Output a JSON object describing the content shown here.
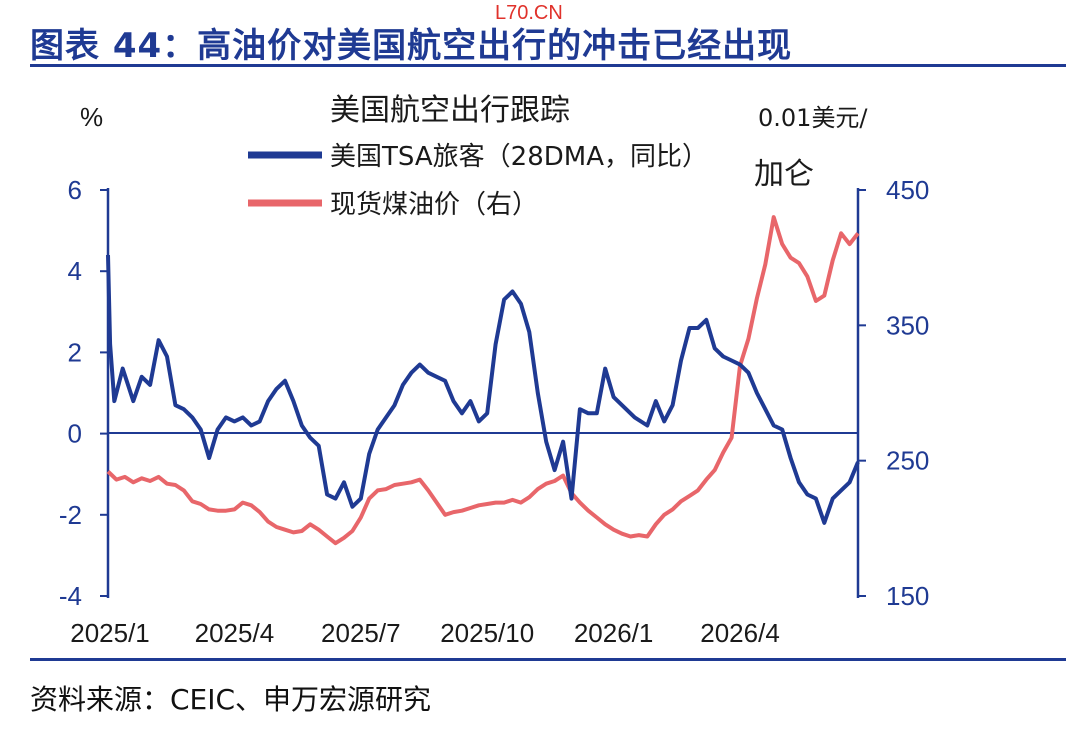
{
  "header": {
    "watermark": "L70.CN",
    "title": "图表 44：高油价对美国航空出行的冲击已经出现"
  },
  "footer": {
    "source": "资料来源：CEIC、申万宏源研究"
  },
  "chart_data": {
    "type": "line",
    "title": "美国航空出行跟踪",
    "left_axis": {
      "unit": "%",
      "min": -4,
      "max": 6,
      "ticks": [
        "6",
        "4",
        "2",
        "0",
        "-2",
        "-4"
      ]
    },
    "right_axis": {
      "unit_line1": "0.01美元/",
      "unit_line2": "加仑",
      "min": 150,
      "max": 450,
      "ticks": [
        "450",
        "350",
        "250",
        "150"
      ]
    },
    "x_ticks": [
      "2025/1",
      "2025/4",
      "2025/7",
      "2025/10",
      "2026/1",
      "2026/4"
    ],
    "legend_position": "top-center",
    "colors": {
      "tsa": "#1f3a93",
      "jet": "#e8666a",
      "axis": "#1f3a93"
    },
    "series": [
      {
        "name": "美国TSA旅客（28DMA，同比）",
        "axis": "left",
        "points": [
          [
            0.0,
            4.4
          ],
          [
            0.05,
            2.2
          ],
          [
            0.15,
            0.8
          ],
          [
            0.35,
            1.6
          ],
          [
            0.6,
            0.8
          ],
          [
            0.8,
            1.4
          ],
          [
            1.0,
            1.2
          ],
          [
            1.2,
            2.3
          ],
          [
            1.4,
            1.9
          ],
          [
            1.6,
            0.7
          ],
          [
            1.8,
            0.6
          ],
          [
            2.0,
            0.4
          ],
          [
            2.2,
            0.1
          ],
          [
            2.4,
            -0.6
          ],
          [
            2.6,
            0.1
          ],
          [
            2.8,
            0.4
          ],
          [
            3.0,
            0.3
          ],
          [
            3.2,
            0.4
          ],
          [
            3.4,
            0.2
          ],
          [
            3.6,
            0.3
          ],
          [
            3.8,
            0.8
          ],
          [
            4.0,
            1.1
          ],
          [
            4.2,
            1.3
          ],
          [
            4.4,
            0.8
          ],
          [
            4.6,
            0.2
          ],
          [
            4.8,
            -0.1
          ],
          [
            5.0,
            -0.3
          ],
          [
            5.2,
            -1.5
          ],
          [
            5.4,
            -1.6
          ],
          [
            5.6,
            -1.2
          ],
          [
            5.8,
            -1.8
          ],
          [
            6.0,
            -1.6
          ],
          [
            6.2,
            -0.5
          ],
          [
            6.4,
            0.1
          ],
          [
            6.6,
            0.4
          ],
          [
            6.8,
            0.7
          ],
          [
            7.0,
            1.2
          ],
          [
            7.2,
            1.5
          ],
          [
            7.4,
            1.7
          ],
          [
            7.6,
            1.5
          ],
          [
            7.8,
            1.4
          ],
          [
            8.0,
            1.3
          ],
          [
            8.2,
            0.8
          ],
          [
            8.4,
            0.5
          ],
          [
            8.6,
            0.8
          ],
          [
            8.8,
            0.3
          ],
          [
            9.0,
            0.5
          ],
          [
            9.2,
            2.2
          ],
          [
            9.4,
            3.3
          ],
          [
            9.6,
            3.5
          ],
          [
            9.8,
            3.2
          ],
          [
            10.0,
            2.5
          ],
          [
            10.2,
            1.0
          ],
          [
            10.4,
            -0.2
          ],
          [
            10.6,
            -0.9
          ],
          [
            10.8,
            -0.2
          ],
          [
            11.0,
            -1.6
          ],
          [
            11.2,
            0.6
          ],
          [
            11.4,
            0.5
          ],
          [
            11.6,
            0.5
          ],
          [
            11.8,
            1.6
          ],
          [
            12.0,
            0.9
          ],
          [
            12.5,
            0.4
          ],
          [
            12.8,
            0.2
          ],
          [
            13.0,
            0.8
          ],
          [
            13.2,
            0.3
          ],
          [
            13.4,
            0.7
          ],
          [
            13.6,
            1.8
          ],
          [
            13.8,
            2.6
          ],
          [
            14.0,
            2.6
          ],
          [
            14.2,
            2.8
          ],
          [
            14.4,
            2.1
          ],
          [
            14.6,
            1.9
          ],
          [
            14.8,
            1.8
          ],
          [
            15.0,
            1.7
          ],
          [
            15.2,
            1.5
          ],
          [
            15.4,
            1.0
          ],
          [
            15.6,
            0.6
          ],
          [
            15.8,
            0.2
          ],
          [
            16.0,
            0.1
          ],
          [
            16.2,
            -0.6
          ],
          [
            16.4,
            -1.2
          ],
          [
            16.6,
            -1.5
          ],
          [
            16.8,
            -1.6
          ],
          [
            17.0,
            -2.2
          ],
          [
            17.2,
            -1.6
          ],
          [
            17.4,
            -1.4
          ],
          [
            17.6,
            -1.2
          ],
          [
            17.8,
            -0.7
          ]
        ]
      },
      {
        "name": "现货煤油价（右）",
        "axis": "right",
        "points": [
          [
            0.0,
            242
          ],
          [
            0.2,
            236
          ],
          [
            0.4,
            238
          ],
          [
            0.6,
            234
          ],
          [
            0.8,
            237
          ],
          [
            1.0,
            235
          ],
          [
            1.2,
            238
          ],
          [
            1.4,
            233
          ],
          [
            1.6,
            232
          ],
          [
            1.8,
            228
          ],
          [
            2.0,
            220
          ],
          [
            2.2,
            218
          ],
          [
            2.4,
            214
          ],
          [
            2.6,
            213
          ],
          [
            2.8,
            213
          ],
          [
            3.0,
            214
          ],
          [
            3.2,
            219
          ],
          [
            3.4,
            217
          ],
          [
            3.6,
            212
          ],
          [
            3.8,
            205
          ],
          [
            4.0,
            201
          ],
          [
            4.2,
            199
          ],
          [
            4.4,
            197
          ],
          [
            4.6,
            198
          ],
          [
            4.8,
            203
          ],
          [
            5.0,
            199
          ],
          [
            5.2,
            194
          ],
          [
            5.4,
            189
          ],
          [
            5.6,
            193
          ],
          [
            5.8,
            198
          ],
          [
            6.0,
            208
          ],
          [
            6.2,
            222
          ],
          [
            6.4,
            228
          ],
          [
            6.6,
            229
          ],
          [
            6.8,
            232
          ],
          [
            7.0,
            233
          ],
          [
            7.2,
            234
          ],
          [
            7.4,
            236
          ],
          [
            7.6,
            228
          ],
          [
            7.8,
            219
          ],
          [
            8.0,
            210
          ],
          [
            8.2,
            212
          ],
          [
            8.4,
            213
          ],
          [
            8.6,
            215
          ],
          [
            8.8,
            217
          ],
          [
            9.0,
            218
          ],
          [
            9.2,
            219
          ],
          [
            9.4,
            219
          ],
          [
            9.6,
            221
          ],
          [
            9.8,
            219
          ],
          [
            10.0,
            223
          ],
          [
            10.2,
            229
          ],
          [
            10.4,
            233
          ],
          [
            10.6,
            235
          ],
          [
            10.8,
            239
          ],
          [
            11.0,
            226
          ],
          [
            11.2,
            219
          ],
          [
            11.4,
            213
          ],
          [
            11.6,
            208
          ],
          [
            11.8,
            203
          ],
          [
            12.0,
            199
          ],
          [
            12.2,
            196
          ],
          [
            12.4,
            194
          ],
          [
            12.6,
            195
          ],
          [
            12.8,
            194
          ],
          [
            13.0,
            203
          ],
          [
            13.2,
            210
          ],
          [
            13.4,
            214
          ],
          [
            13.6,
            220
          ],
          [
            13.8,
            224
          ],
          [
            14.0,
            228
          ],
          [
            14.2,
            236
          ],
          [
            14.4,
            243
          ],
          [
            14.6,
            256
          ],
          [
            14.8,
            267
          ],
          [
            15.0,
            320
          ],
          [
            15.2,
            340
          ],
          [
            15.4,
            370
          ],
          [
            15.6,
            395
          ],
          [
            15.8,
            430
          ],
          [
            16.0,
            410
          ],
          [
            16.2,
            400
          ],
          [
            16.4,
            396
          ],
          [
            16.6,
            386
          ],
          [
            16.8,
            368
          ],
          [
            17.0,
            372
          ],
          [
            17.2,
            398
          ],
          [
            17.4,
            418
          ],
          [
            17.6,
            410
          ],
          [
            17.8,
            418
          ]
        ]
      }
    ]
  }
}
